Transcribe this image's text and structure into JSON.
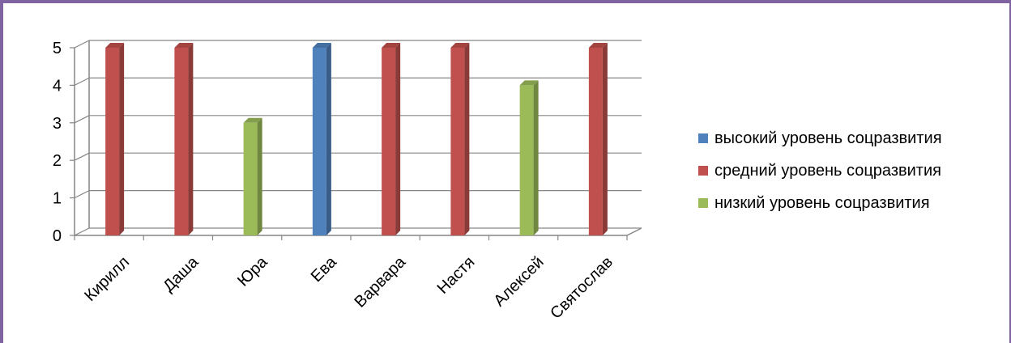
{
  "chart_data": {
    "type": "bar",
    "title": "",
    "xlabel": "",
    "ylabel": "",
    "ylim": [
      0,
      5
    ],
    "yticks": [
      "0",
      "1",
      "2",
      "3",
      "4",
      "5"
    ],
    "grid": true,
    "legend_position": "right",
    "categories": [
      "Кирилл",
      "Даша",
      "Юра",
      "Ева",
      "Варвара",
      "Настя",
      "Алексей",
      "Святослав"
    ],
    "series": [
      {
        "name": "высокий уровень соцразвития",
        "color": "#4f81bd",
        "values": [
          null,
          null,
          null,
          5,
          null,
          null,
          null,
          null
        ]
      },
      {
        "name": "средний уровень соцразвития",
        "color": "#c0504d",
        "values": [
          5,
          5,
          null,
          null,
          5,
          5,
          null,
          5
        ]
      },
      {
        "name": "низкий уровень соцразвития",
        "color": "#9bbb59",
        "values": [
          null,
          null,
          3,
          null,
          null,
          null,
          4,
          null
        ]
      }
    ]
  }
}
